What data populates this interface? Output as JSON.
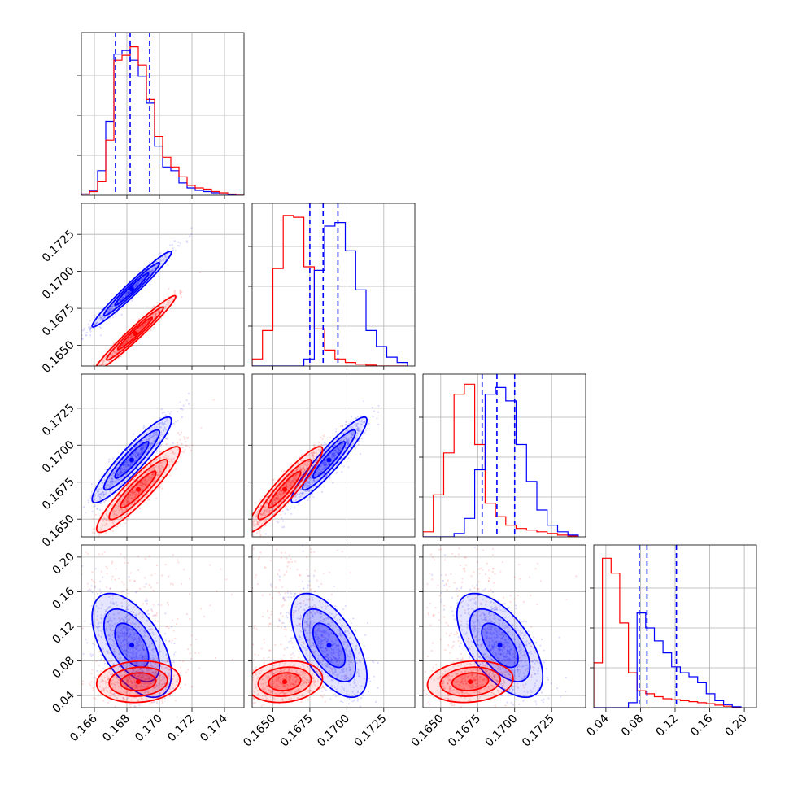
{
  "chart_data": {
    "type": "corner",
    "grid": true,
    "series": [
      {
        "color": "#0000ff"
      },
      {
        "color": "#ff0000"
      }
    ],
    "parameters": [
      {
        "range": [
          0.1652,
          0.1752
        ],
        "ticks": [
          0.166,
          0.168,
          0.17,
          0.172,
          0.174
        ],
        "tick_labels": [
          "0.166",
          "0.168",
          "0.170",
          "0.172",
          "0.174"
        ],
        "quantiles": [
          0.1673,
          0.1682,
          0.1694
        ]
      },
      {
        "range": [
          0.1636,
          0.1746
        ],
        "ticks": [
          0.165,
          0.1675,
          0.17,
          0.1725
        ],
        "tick_labels": [
          "0.1650",
          "0.1675",
          "0.1700",
          "0.1725"
        ],
        "quantiles": [
          0.1675,
          0.1684,
          0.1694
        ]
      },
      {
        "range": [
          0.1638,
          0.1748
        ],
        "ticks": [
          0.165,
          0.1675,
          0.17,
          0.1725
        ],
        "tick_labels": [
          "0.1650",
          "0.1675",
          "0.1700",
          "0.1725"
        ],
        "quantiles": [
          0.1678,
          0.1688,
          0.17
        ]
      },
      {
        "range": [
          0.026,
          0.214
        ],
        "ticks": [
          0.04,
          0.08,
          0.12,
          0.16,
          0.2
        ],
        "tick_labels": [
          "0.04",
          "0.08",
          "0.12",
          "0.16",
          "0.20"
        ],
        "quantiles": [
          0.0785,
          0.0875,
          0.1215
        ]
      }
    ],
    "histograms": [
      {
        "param": 0,
        "ymax": 260,
        "series": [
          {
            "series": 0,
            "bins": [
              0.1652,
              0.1657,
              0.1662,
              0.1667,
              0.1672,
              0.1677,
              0.1682,
              0.1687,
              0.1692,
              0.1697,
              0.1702,
              0.1707,
              0.1712,
              0.1717,
              0.1722,
              0.1727,
              0.1732,
              0.1737,
              0.1742,
              0.1747,
              0.1752
            ],
            "counts": [
              2,
              8,
              40,
              120,
              230,
              236,
              220,
              194,
              150,
              80,
              46,
              40,
              20,
              12,
              8,
              6,
              4,
              2,
              1,
              0
            ]
          },
          {
            "series": 1,
            "bins": [
              0.1652,
              0.1657,
              0.1662,
              0.1667,
              0.1672,
              0.1677,
              0.1682,
              0.1687,
              0.1692,
              0.1697,
              0.1702,
              0.1707,
              0.1712,
              0.1717,
              0.1722,
              0.1727,
              0.1732,
              0.1737,
              0.1742,
              0.1747,
              0.1752
            ],
            "counts": [
              2,
              6,
              22,
              90,
              220,
              228,
              242,
              212,
              156,
              96,
              62,
              46,
              30,
              16,
              12,
              10,
              6,
              4,
              2,
              0
            ]
          }
        ]
      },
      {
        "param": 1,
        "ymax": 180,
        "series": [
          {
            "series": 1,
            "bins": [
              0.1636,
              0.1643,
              0.165,
              0.1657,
              0.1664,
              0.1671,
              0.1678,
              0.1685,
              0.1692,
              0.1699,
              0.1706,
              0.1713,
              0.172,
              0.1727,
              0.1734,
              0.1741
            ],
            "counts": [
              8,
              40,
              110,
              170,
              168,
              112,
              42,
              18,
              8,
              4,
              2,
              1,
              0,
              0,
              0
            ]
          },
          {
            "series": 0,
            "bins": [
              0.1636,
              0.1643,
              0.165,
              0.1657,
              0.1664,
              0.1671,
              0.1678,
              0.1685,
              0.1692,
              0.1699,
              0.1706,
              0.1713,
              0.172,
              0.1727,
              0.1734,
              0.1741
            ],
            "counts": [
              0,
              0,
              0,
              0,
              0,
              8,
              108,
              158,
              162,
              130,
              86,
              40,
              22,
              10,
              4
            ]
          }
        ]
      },
      {
        "param": 2,
        "ymax": 190,
        "series": [
          {
            "series": 1,
            "bins": [
              0.1638,
              0.1645,
              0.1652,
              0.1659,
              0.1666,
              0.1673,
              0.168,
              0.1687,
              0.1694,
              0.1701,
              0.1708,
              0.1715,
              0.1722,
              0.1729,
              0.1736,
              0.1743
            ],
            "counts": [
              6,
              50,
              100,
              170,
              182,
              110,
              40,
              24,
              14,
              10,
              8,
              6,
              4,
              2,
              1
            ]
          },
          {
            "series": 0,
            "bins": [
              0.1638,
              0.1645,
              0.1652,
              0.1659,
              0.1666,
              0.1673,
              0.168,
              0.1687,
              0.1694,
              0.1701,
              0.1708,
              0.1715,
              0.1722,
              0.1729,
              0.1736,
              0.1743
            ],
            "counts": [
              0,
              0,
              0,
              4,
              22,
              80,
              170,
              178,
              162,
              110,
              66,
              32,
              14,
              6,
              2
            ]
          }
        ]
      },
      {
        "param": 3,
        "ymax": 320,
        "series": [
          {
            "series": 1,
            "bins": [
              0.026,
              0.036,
              0.046,
              0.056,
              0.066,
              0.076,
              0.086,
              0.096,
              0.106,
              0.116,
              0.126,
              0.136,
              0.146,
              0.156,
              0.166,
              0.176,
              0.186,
              0.196
            ],
            "counts": [
              90,
              300,
              270,
              170,
              70,
              34,
              28,
              22,
              18,
              16,
              14,
              12,
              10,
              8,
              5,
              3,
              1
            ]
          },
          {
            "series": 0,
            "bins": [
              0.026,
              0.036,
              0.046,
              0.056,
              0.066,
              0.076,
              0.086,
              0.096,
              0.106,
              0.116,
              0.126,
              0.136,
              0.146,
              0.156,
              0.166,
              0.176,
              0.186,
              0.196
            ],
            "counts": [
              0,
              0,
              0,
              0,
              10,
              190,
              160,
              134,
              110,
              82,
              70,
              62,
              50,
              28,
              14,
              6,
              2
            ]
          }
        ]
      }
    ],
    "pairs": [
      {
        "x": 0,
        "y": 1,
        "groups": [
          {
            "series": 0,
            "mean": [
              0.1683,
              0.1688
            ],
            "sd": [
              0.00122,
              0.00128
            ],
            "rho": 0.975
          },
          {
            "series": 1,
            "mean": [
              0.1685,
              0.1658
            ],
            "sd": [
              0.00125,
              0.00128
            ],
            "rho": 0.975
          }
        ]
      },
      {
        "x": 0,
        "y": 2,
        "groups": [
          {
            "series": 0,
            "mean": [
              0.1683,
              0.169
            ],
            "sd": [
              0.00122,
              0.00145
            ],
            "rho": 0.92
          },
          {
            "series": 1,
            "mean": [
              0.1687,
              0.167
            ],
            "sd": [
              0.00128,
              0.00145
            ],
            "rho": 0.92
          }
        ]
      },
      {
        "x": 1,
        "y": 2,
        "groups": [
          {
            "series": 0,
            "mean": [
              0.1688,
              0.169
            ],
            "sd": [
              0.00128,
              0.00145
            ],
            "rho": 0.93
          },
          {
            "series": 1,
            "mean": [
              0.1658,
              0.167
            ],
            "sd": [
              0.00128,
              0.00145
            ],
            "rho": 0.93
          }
        ]
      },
      {
        "x": 0,
        "y": 3,
        "groups": [
          {
            "series": 0,
            "mean": [
              0.1683,
              0.098
            ],
            "sd": [
              0.00122,
              0.03
            ],
            "rho": -0.55
          },
          {
            "series": 1,
            "mean": [
              0.1687,
              0.056
            ],
            "sd": [
              0.00128,
              0.012
            ],
            "rho": 0.1
          }
        ]
      },
      {
        "x": 1,
        "y": 3,
        "groups": [
          {
            "series": 0,
            "mean": [
              0.1688,
              0.098
            ],
            "sd": [
              0.00128,
              0.03
            ],
            "rho": -0.6
          },
          {
            "series": 1,
            "mean": [
              0.1658,
              0.056
            ],
            "sd": [
              0.00128,
              0.012
            ],
            "rho": 0.15
          }
        ]
      },
      {
        "x": 2,
        "y": 3,
        "groups": [
          {
            "series": 0,
            "mean": [
              0.169,
              0.098
            ],
            "sd": [
              0.00145,
              0.03
            ],
            "rho": -0.6
          },
          {
            "series": 1,
            "mean": [
              0.167,
              0.056
            ],
            "sd": [
              0.00145,
              0.012
            ],
            "rho": 0.15
          }
        ]
      }
    ]
  }
}
